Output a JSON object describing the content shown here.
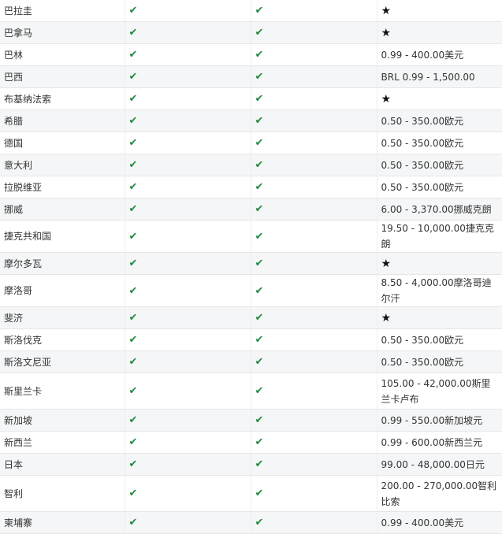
{
  "colors": {
    "check": "#1f8a3e",
    "row_alt": "#f5f6f7"
  },
  "icons": {
    "check": "✔",
    "star": "★"
  },
  "rows": [
    {
      "country": "巴拉圭",
      "col2": "check",
      "col3": "check",
      "range": null
    },
    {
      "country": "巴拿马",
      "col2": "check",
      "col3": "check",
      "range": null
    },
    {
      "country": "巴林",
      "col2": "check",
      "col3": "check",
      "range": "0.99 - 400.00美元"
    },
    {
      "country": "巴西",
      "col2": "check",
      "col3": "check",
      "range": "BRL 0.99 - 1,500.00"
    },
    {
      "country": "布基纳法索",
      "col2": "check",
      "col3": "check",
      "range": null
    },
    {
      "country": "希腊",
      "col2": "check",
      "col3": "check",
      "range": "0.50 - 350.00欧元"
    },
    {
      "country": "德国",
      "col2": "check",
      "col3": "check",
      "range": "0.50 - 350.00欧元"
    },
    {
      "country": "意大利",
      "col2": "check",
      "col3": "check",
      "range": "0.50 - 350.00欧元"
    },
    {
      "country": "拉脱维亚",
      "col2": "check",
      "col3": "check",
      "range": "0.50 - 350.00欧元"
    },
    {
      "country": "挪威",
      "col2": "check",
      "col3": "check",
      "range": "6.00 - 3,370.00挪威克朗"
    },
    {
      "country": "捷克共和国",
      "col2": "check",
      "col3": "check",
      "range": "19.50 - 10,000.00捷克克朗"
    },
    {
      "country": "摩尔多瓦",
      "col2": "check",
      "col3": "check",
      "range": null
    },
    {
      "country": "摩洛哥",
      "col2": "check",
      "col3": "check",
      "range": "8.50 - 4,000.00摩洛哥迪尔汗"
    },
    {
      "country": "斐济",
      "col2": "check",
      "col3": "check",
      "range": null
    },
    {
      "country": "斯洛伐克",
      "col2": "check",
      "col3": "check",
      "range": "0.50 - 350.00欧元"
    },
    {
      "country": "斯洛文尼亚",
      "col2": "check",
      "col3": "check",
      "range": "0.50 - 350.00欧元"
    },
    {
      "country": "斯里兰卡",
      "col2": "check",
      "col3": "check",
      "range": "105.00 - 42,000.00斯里兰卡卢布"
    },
    {
      "country": "新加坡",
      "col2": "check",
      "col3": "check",
      "range": "0.99 - 550.00新加坡元"
    },
    {
      "country": "新西兰",
      "col2": "check",
      "col3": "check",
      "range": "0.99 - 600.00新西兰元"
    },
    {
      "country": "日本",
      "col2": "check",
      "col3": "check",
      "range": "99.00 - 48,000.00日元"
    },
    {
      "country": "智利",
      "col2": "check",
      "col3": "check",
      "range": "200.00 - 270,000.00智利比索"
    },
    {
      "country": "柬埔寨",
      "col2": "check",
      "col3": "check",
      "range": "0.99 - 400.00美元"
    }
  ]
}
